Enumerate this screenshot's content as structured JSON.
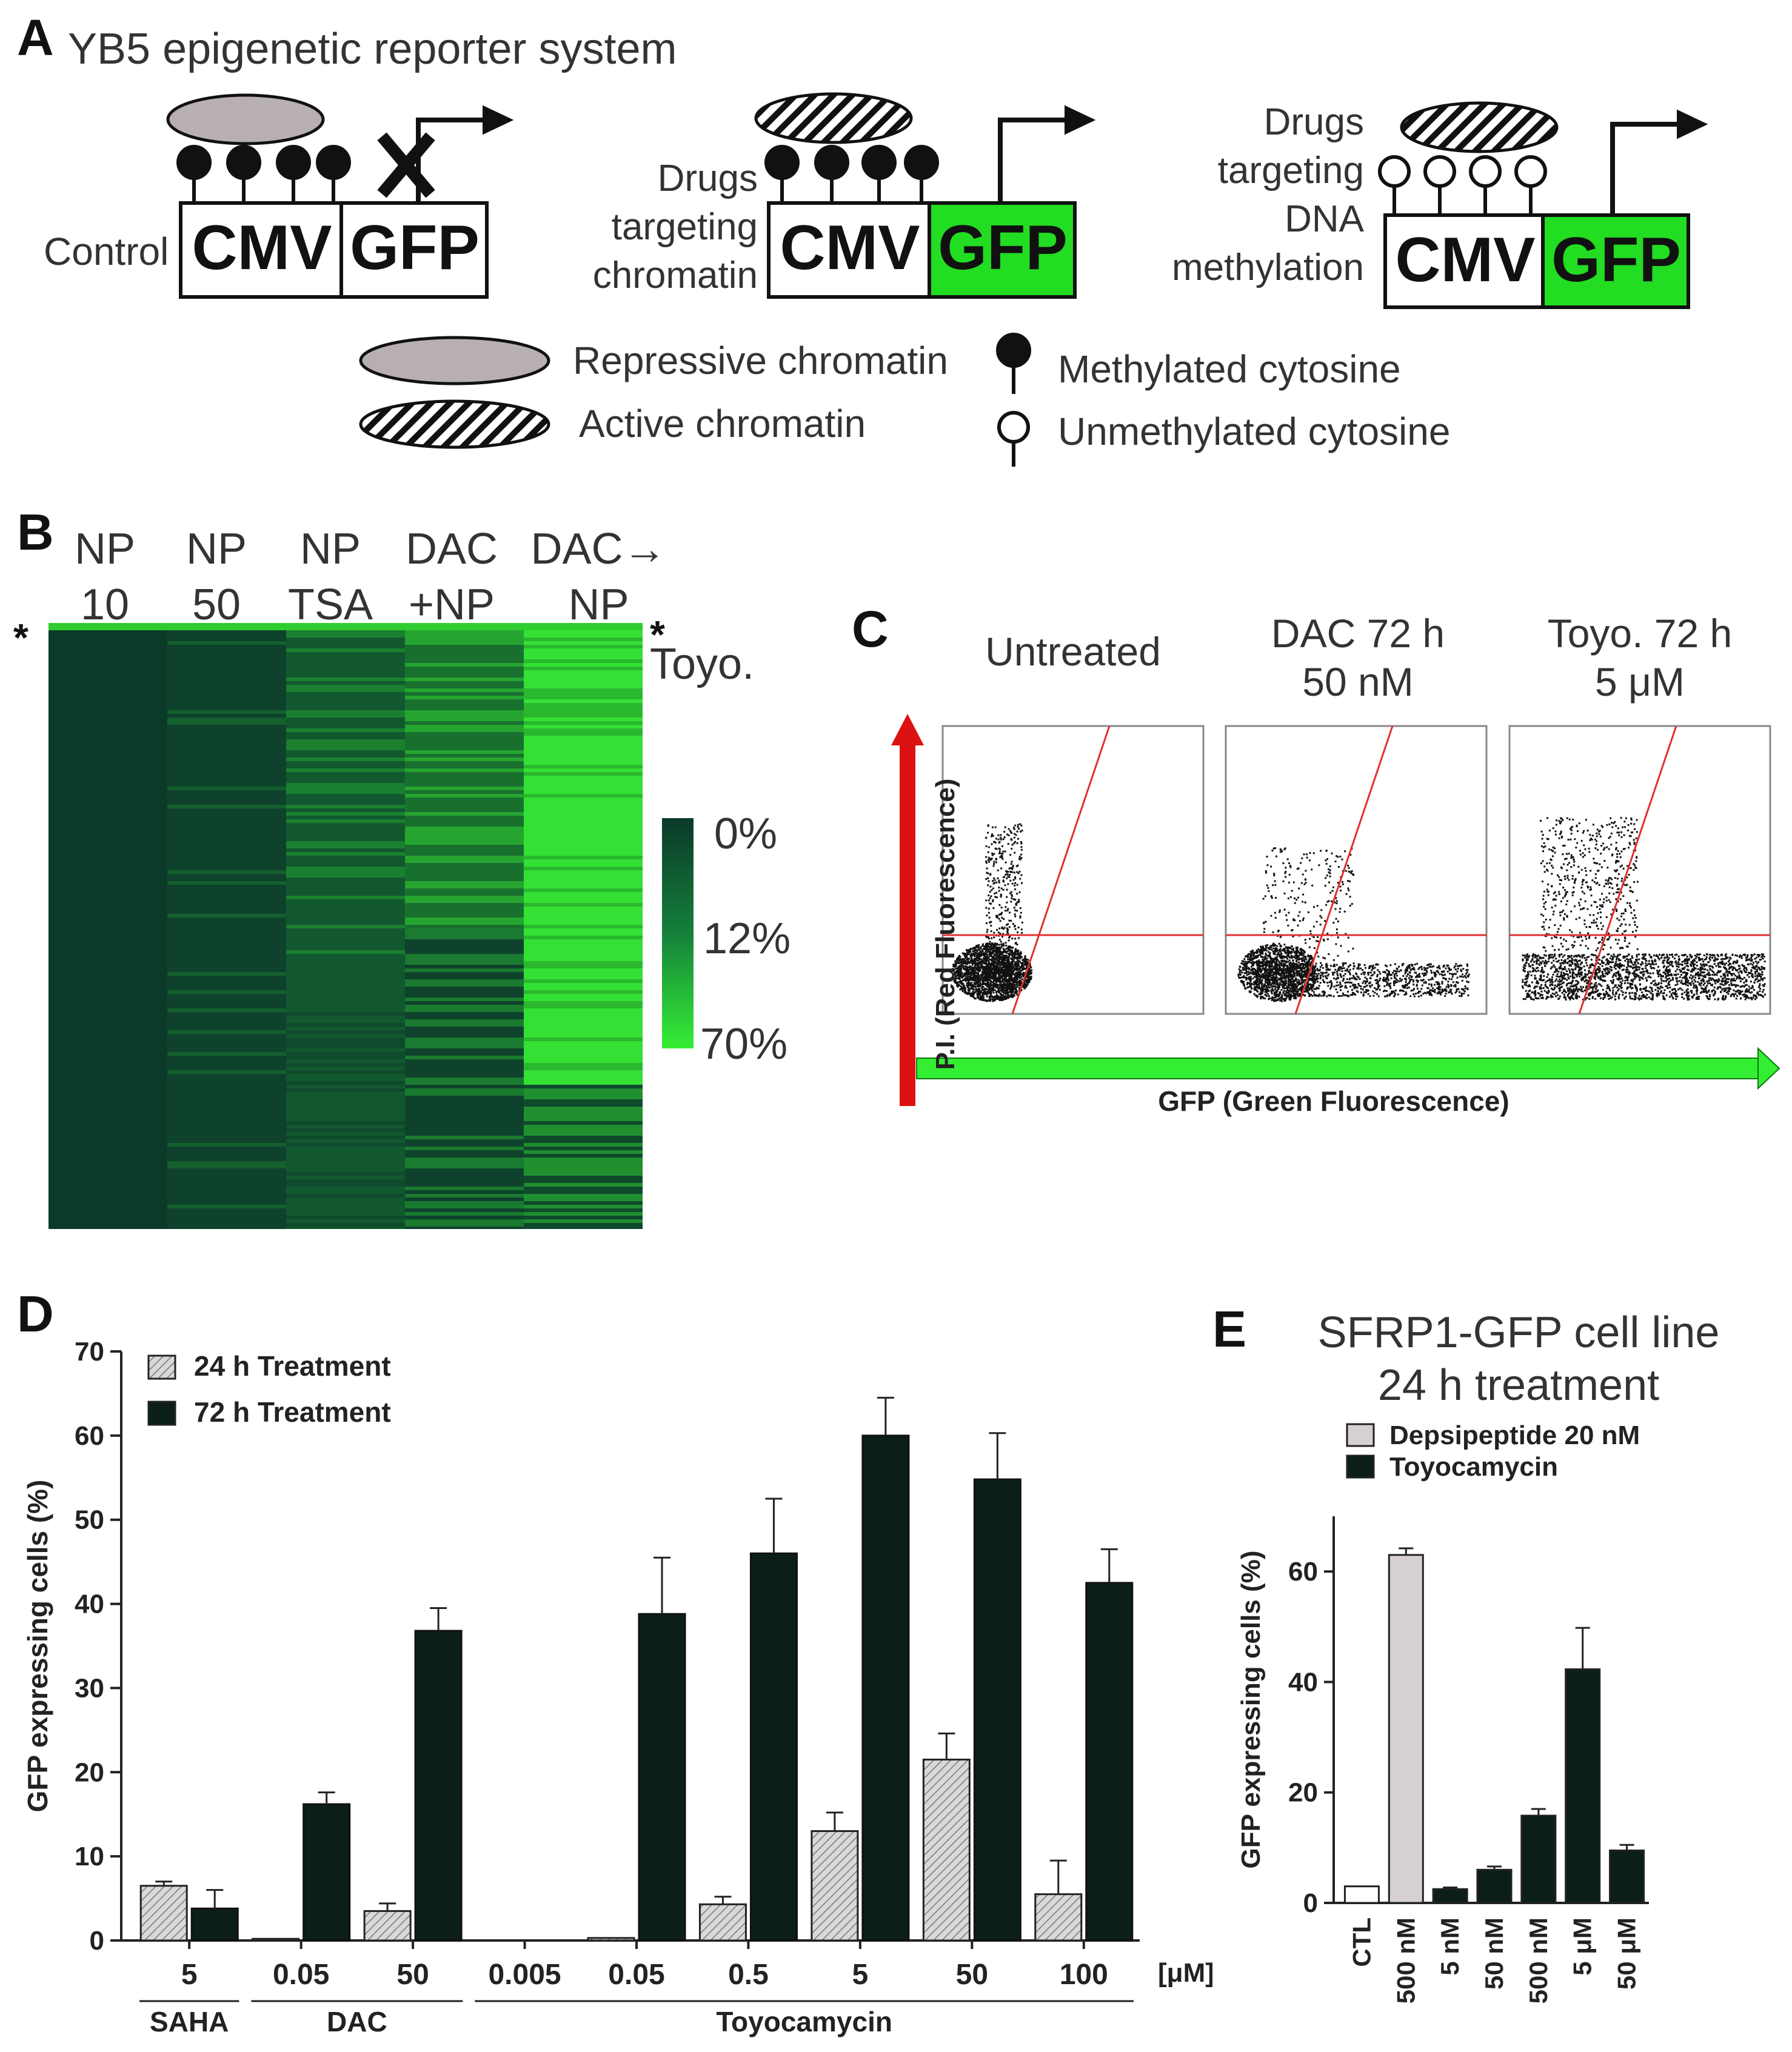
{
  "panel_a": {
    "letter": "A",
    "title": "YB5 epigenetic reporter system",
    "control_label": "Control",
    "cmv": "CMV",
    "gfp": "GFP",
    "chromatin_drug_label": [
      "Drugs",
      "targeting",
      "chromatin"
    ],
    "dna_drug_label": [
      "Drugs",
      "targeting",
      "DNA",
      "methylation"
    ],
    "legend": {
      "repressive": "Repressive chromatin",
      "active": "Active chromatin",
      "methylated": "Methylated cytosine",
      "unmethylated": "Unmethylated cytosine"
    },
    "colors": {
      "gfp_on": "#22dd22",
      "repressive": "#b8b0b0"
    }
  },
  "panel_b": {
    "letter": "B",
    "columns": [
      {
        "line1": "NP",
        "line2": "10"
      },
      {
        "line1": "NP",
        "line2": "50"
      },
      {
        "line1": "NP",
        "line2": "TSA"
      },
      {
        "line1": "DAC",
        "line2": "+NP"
      },
      {
        "line1": "DAC→",
        "line2": "NP"
      }
    ],
    "star": "*",
    "toyo_label": "Toyo.",
    "scale": [
      "0%",
      "12%",
      "70%"
    ],
    "colors": {
      "low": "#0b3a2a",
      "high": "#35ee35"
    }
  },
  "panel_c": {
    "letter": "C",
    "plots": [
      {
        "title1": "Untreated",
        "title2": ""
      },
      {
        "title1": "DAC 72 h",
        "title2": "50 nM"
      },
      {
        "title1": "Toyo. 72 h",
        "title2": "5 μM"
      }
    ],
    "ylabel": "P.I. (Red Fluorescence)",
    "xlabel": "GFP (Green Fluorescence)"
  },
  "chart_data": [
    {
      "panel": "D",
      "type": "bar",
      "ylabel": "GFP expressing cells (%)",
      "ylim": [
        0,
        70
      ],
      "yticks": [
        0,
        10,
        20,
        30,
        40,
        50,
        60,
        70
      ],
      "unit_label": "[μM]",
      "categories": [
        "5",
        "0.05",
        "50",
        "0.005",
        "0.05",
        "0.5",
        "5",
        "50",
        "100"
      ],
      "groups": [
        {
          "label": "SAHA",
          "from": 0,
          "to": 0
        },
        {
          "label": "DAC",
          "from": 1,
          "to": 2
        },
        {
          "label": "Toyocamycin",
          "from": 3,
          "to": 8
        }
      ],
      "series": [
        {
          "name": "24 h Treatment",
          "values": [
            6.5,
            0.2,
            3.5,
            0,
            0.3,
            4.3,
            13,
            21.5,
            5.5
          ],
          "errors": [
            0.5,
            0,
            0.9,
            0,
            0,
            0.9,
            2.2,
            3.1,
            4
          ]
        },
        {
          "name": "72 h Treatment",
          "values": [
            3.8,
            16.2,
            36.8,
            0,
            38.8,
            46,
            60,
            54.8,
            42.5
          ],
          "errors": [
            2.2,
            1.4,
            2.7,
            0,
            6.7,
            6.5,
            4.5,
            5.5,
            4
          ]
        }
      ]
    },
    {
      "panel": "E",
      "type": "bar",
      "title": "SFRP1-GFP cell line 24 h treatment",
      "title_line1": "SFRP1-GFP cell line",
      "title_line2": "24 h treatment",
      "ylabel": "GFP expressing cells (%)",
      "ylim": [
        0,
        70
      ],
      "yticks": [
        0,
        20,
        40,
        60
      ],
      "categories": [
        "CTL",
        "500 nM",
        "5 nM",
        "50 nM",
        "500 nM",
        "5 μM",
        "50 μM"
      ],
      "series": [
        {
          "name": "Depsipeptide 20 nM",
          "values": [
            3,
            63,
            null,
            null,
            null,
            null,
            null
          ],
          "errors": [
            0,
            1.2,
            null,
            null,
            null,
            null,
            null
          ]
        },
        {
          "name": "Toyocamycin",
          "values": [
            null,
            null,
            2.5,
            6,
            15.8,
            42.3,
            9.5
          ],
          "errors": [
            null,
            null,
            0.3,
            0.6,
            1.2,
            7.5,
            1
          ]
        }
      ]
    }
  ]
}
